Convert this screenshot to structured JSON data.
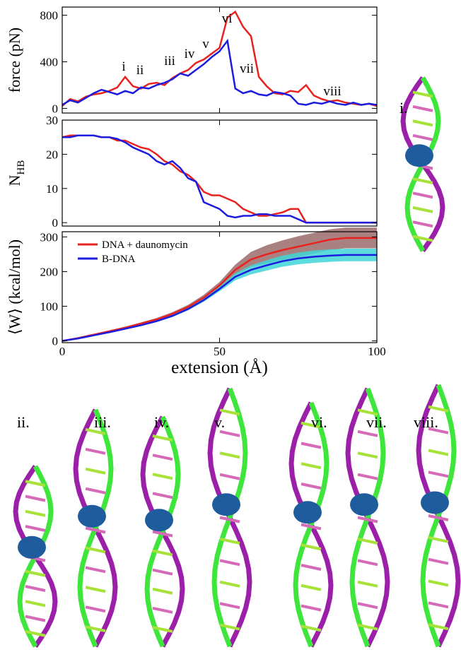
{
  "chart_data": [
    {
      "type": "line",
      "ylabel": "force (pN)",
      "show_xtick_labels": false,
      "x": [
        0,
        2.5,
        5,
        7.5,
        10,
        12.5,
        15,
        17.5,
        20,
        22.5,
        25,
        27.5,
        30,
        32.5,
        35,
        37.5,
        40,
        42.5,
        45,
        47.5,
        50,
        52.5,
        55,
        57.5,
        60,
        62.5,
        65,
        67.5,
        70,
        72.5,
        75,
        77.5,
        80,
        82.5,
        85,
        87.5,
        90,
        92.5,
        95,
        97.5,
        100
      ],
      "series": [
        {
          "name": "DNA + daunomycin",
          "color": "#e8231f",
          "values": [
            20,
            80,
            60,
            100,
            120,
            130,
            150,
            180,
            270,
            190,
            170,
            210,
            220,
            200,
            260,
            300,
            330,
            390,
            420,
            470,
            520,
            780,
            830,
            700,
            620,
            270,
            190,
            130,
            120,
            150,
            140,
            200,
            110,
            80,
            60,
            70,
            50,
            40,
            30,
            40,
            20
          ]
        },
        {
          "name": "B-DNA",
          "color": "#1c1ce0",
          "values": [
            30,
            70,
            50,
            90,
            130,
            160,
            140,
            120,
            150,
            130,
            180,
            170,
            200,
            220,
            250,
            300,
            280,
            330,
            380,
            440,
            490,
            580,
            170,
            130,
            150,
            120,
            110,
            140,
            130,
            110,
            40,
            30,
            50,
            40,
            60,
            40,
            30,
            50,
            30,
            40,
            30
          ]
        }
      ],
      "annotations": [
        "i",
        "ii",
        "iii",
        "iv",
        "v",
        "vi",
        "vii",
        "viii"
      ],
      "xlim": [
        0,
        100
      ],
      "xticks": [
        0,
        50,
        100
      ],
      "ylim": [
        -40,
        870
      ],
      "yticks": [
        0,
        400,
        800
      ]
    },
    {
      "type": "line",
      "ylabel": "N",
      "ylabel_subscript": "HB",
      "show_xtick_labels": false,
      "x": [
        0,
        2.5,
        5,
        7.5,
        10,
        12.5,
        15,
        17.5,
        20,
        22.5,
        25,
        27.5,
        30,
        32.5,
        35,
        37.5,
        40,
        42.5,
        45,
        47.5,
        50,
        52.5,
        55,
        57.5,
        60,
        62.5,
        65,
        67.5,
        70,
        72.5,
        75,
        77.5,
        80,
        82.5,
        85,
        87.5,
        90,
        92.5,
        95,
        97.5,
        100
      ],
      "series": [
        {
          "name": "DNA + daunomycin",
          "color": "#e8231f",
          "values": [
            25,
            25.5,
            25.5,
            25.5,
            25.5,
            25,
            25,
            24,
            24,
            23,
            22,
            21.5,
            20,
            18,
            17,
            15,
            14,
            12,
            9,
            8,
            8,
            7,
            6,
            4,
            3,
            2,
            2,
            2.5,
            3,
            4,
            4,
            0,
            0,
            0,
            0,
            0,
            0,
            0,
            0,
            0,
            0
          ]
        },
        {
          "name": "B-DNA",
          "color": "#1c1ce0",
          "values": [
            25,
            25,
            25.5,
            25.5,
            25.5,
            25,
            25,
            24.5,
            23.5,
            22,
            21,
            20,
            18,
            17,
            18,
            16,
            13,
            12,
            6,
            5,
            4,
            2,
            1.5,
            2,
            2,
            2.5,
            2.5,
            2,
            2,
            2,
            1,
            0,
            0,
            0,
            0,
            0,
            0,
            0,
            0,
            0,
            0
          ]
        }
      ],
      "xlim": [
        0,
        100
      ],
      "xticks": [
        0,
        50,
        100
      ],
      "ylim": [
        -1,
        30
      ],
      "yticks": [
        0,
        10,
        20,
        30
      ]
    },
    {
      "type": "line",
      "ylabel": "⟨W⟩ (kcal/mol)",
      "xlabel": "extension (Å)",
      "show_xtick_labels": true,
      "legend": "upper left",
      "x": [
        0,
        5,
        10,
        15,
        20,
        25,
        30,
        35,
        40,
        45,
        50,
        55,
        60,
        65,
        70,
        75,
        80,
        85,
        90,
        95,
        100
      ],
      "series": [
        {
          "name": "DNA + daunomycin",
          "color": "#e8231f",
          "band_color": "#9b6b6b",
          "values": [
            0,
            8,
            18,
            28,
            38,
            50,
            62,
            78,
            98,
            125,
            160,
            205,
            235,
            250,
            262,
            272,
            282,
            292,
            297,
            297,
            297
          ],
          "error": [
            0,
            1,
            2,
            2,
            3,
            3,
            4,
            5,
            6,
            8,
            10,
            15,
            22,
            26,
            28,
            30,
            30,
            30,
            30,
            30,
            30
          ]
        },
        {
          "name": "B-DNA",
          "color": "#1c1ce0",
          "band_color": "#3fd6d6",
          "values": [
            0,
            7,
            16,
            25,
            35,
            45,
            57,
            72,
            92,
            118,
            150,
            185,
            205,
            218,
            230,
            238,
            243,
            246,
            248,
            248,
            248
          ],
          "error": [
            0,
            1,
            1,
            2,
            2,
            2,
            3,
            3,
            4,
            5,
            7,
            10,
            13,
            15,
            16,
            17,
            18,
            18,
            18,
            18,
            18
          ]
        }
      ],
      "xlim": [
        0,
        100
      ],
      "xticks": [
        0,
        50,
        100
      ],
      "ylim": [
        -5,
        315
      ],
      "yticks": [
        0,
        100,
        200,
        300
      ]
    }
  ],
  "snapshots": {
    "labels": [
      "i.",
      "ii.",
      "iii.",
      "iv.",
      "v.",
      "vi.",
      "vii.",
      "viii."
    ]
  }
}
